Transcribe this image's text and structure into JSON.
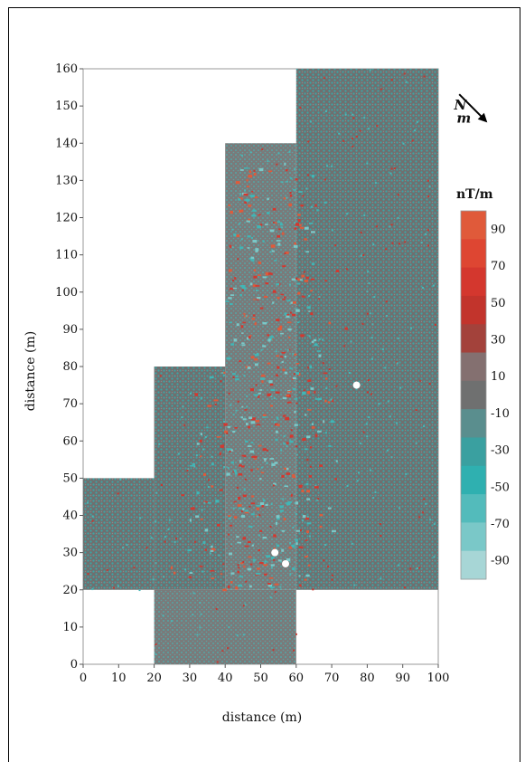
{
  "chart_data": {
    "type": "heatmap",
    "xlabel": "distance (m)",
    "ylabel": "distance (m)",
    "xlim": [
      0,
      100
    ],
    "ylim": [
      0,
      160
    ],
    "x_ticks": [
      "0",
      "10",
      "20",
      "30",
      "40",
      "50",
      "60",
      "70",
      "80",
      "90",
      "100"
    ],
    "y_ticks": [
      "0",
      "10",
      "20",
      "30",
      "40",
      "50",
      "60",
      "70",
      "80",
      "90",
      "100",
      "110",
      "120",
      "130",
      "140",
      "150",
      "160"
    ],
    "survey_blocks_m": [
      {
        "x": [
          0,
          20
        ],
        "y": [
          20,
          50
        ]
      },
      {
        "x": [
          20,
          60
        ],
        "y": [
          0,
          20
        ]
      },
      {
        "x": [
          20,
          40
        ],
        "y": [
          20,
          80
        ]
      },
      {
        "x": [
          40,
          60
        ],
        "y": [
          20,
          140
        ]
      },
      {
        "x": [
          60,
          100
        ],
        "y": [
          20,
          160
        ]
      }
    ],
    "colorbar": {
      "unit": "nT/m",
      "range": [
        -100,
        100
      ],
      "labels": [
        "90",
        "70",
        "50",
        "30",
        "10",
        "-10",
        "-30",
        "-50",
        "-70",
        "-90"
      ],
      "colors": [
        "#e05a3a",
        "#de4632",
        "#d4372e",
        "#c2342c",
        "#a3423b",
        "#847070",
        "#6f7070",
        "#5a8e8e",
        "#3aa0a0",
        "#2fb0b0",
        "#53bbbb",
        "#7ac8c8",
        "#a7d6d6"
      ]
    },
    "north_label": "N",
    "north_subscript": "m",
    "grid": false
  }
}
